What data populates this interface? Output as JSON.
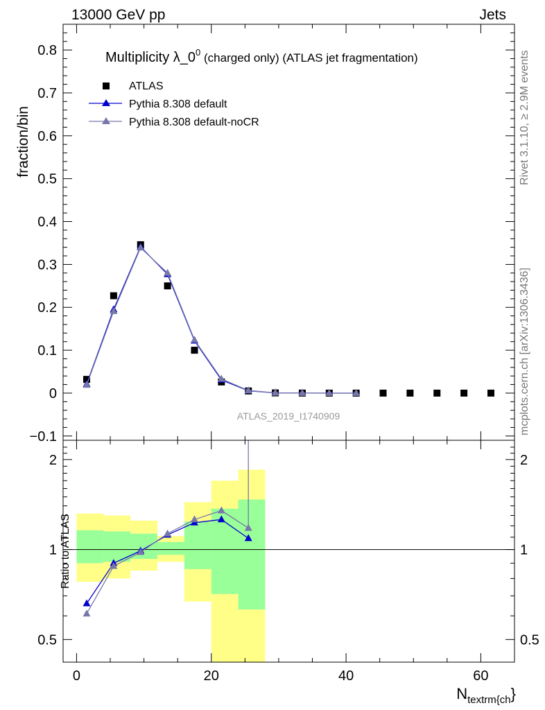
{
  "header": {
    "energy_label": "13000 GeV pp",
    "category_label": "Jets"
  },
  "side_labels": {
    "rivet": "Rivet 3.1.10, ≥ 2.9M events",
    "mcplots": "mcplots.cern.ch [arXiv:1306.3436]"
  },
  "chart_data": [
    {
      "type": "scatter",
      "panel": "main",
      "title_main": "Multiplicity λ_0",
      "title_sup": "0",
      "title_rest": " (charged only) (ATLAS jet fragmentation)",
      "ylabel": "fraction/bin",
      "xlabel_main": "N",
      "xlabel_sub": "textrm{ch",
      "xlabel_tail": "}",
      "analysis_tag": "ATLAS_2019_I1740909",
      "xlim": [
        -2,
        65
      ],
      "ylim": [
        -0.11,
        0.86
      ],
      "y_ticks": [
        "−0.1",
        "0",
        "0.1",
        "0.2",
        "0.3",
        "0.4",
        "0.5",
        "0.6",
        "0.7",
        "0.8"
      ],
      "y_tick_values": [
        -0.1,
        0,
        0.1,
        0.2,
        0.3,
        0.4,
        0.5,
        0.6,
        0.7,
        0.8
      ],
      "legend": {
        "placement": "top-left",
        "entries": [
          "ATLAS",
          "Pythia 8.308 default",
          "Pythia 8.308 default-noCR"
        ]
      },
      "series": [
        {
          "name": "ATLAS",
          "style": "square",
          "color": "#000000",
          "x": [
            1.5,
            5.5,
            9.5,
            13.5,
            17.5,
            21.5,
            25.5,
            29.5,
            33.5,
            37.5,
            41.5,
            45.5,
            49.5,
            53.5,
            57.5,
            61.5
          ],
          "y": [
            0.032,
            0.227,
            0.346,
            0.25,
            0.1,
            0.026,
            0.005,
            0.0005,
            0.0001,
            0,
            0,
            0,
            0,
            0,
            0,
            0
          ]
        },
        {
          "name": "Pythia 8.308 default",
          "style": "line-triangle",
          "color": "#0000cc",
          "x": [
            1.5,
            5.5,
            9.5,
            13.5,
            17.5,
            21.5,
            25.5,
            29.5,
            33.5,
            37.5,
            41.5
          ],
          "y": [
            0.021,
            0.195,
            0.341,
            0.277,
            0.122,
            0.031,
            0.0055,
            0.0006,
            0.0001,
            0,
            0
          ]
        },
        {
          "name": "Pythia 8.308 default-noCR",
          "style": "line-triangle",
          "color": "#7777aa",
          "x": [
            1.5,
            5.5,
            9.5,
            13.5,
            17.5,
            21.5,
            25.5,
            29.5,
            33.5,
            37.5,
            41.5
          ],
          "y": [
            0.019,
            0.191,
            0.339,
            0.28,
            0.124,
            0.033,
            0.006,
            0.0007,
            0.0001,
            0,
            0
          ]
        }
      ]
    },
    {
      "type": "line",
      "panel": "ratio",
      "ylabel": "Ratio to ATLAS",
      "xlim": [
        -2,
        65
      ],
      "ylim": [
        0.42,
        2.32
      ],
      "log_y": true,
      "x_ticks": [
        "0",
        "20",
        "40",
        "60"
      ],
      "x_tick_values": [
        0,
        20,
        40,
        60
      ],
      "y_ticks": [
        "0.5",
        "1",
        "2"
      ],
      "y_tick_values": [
        0.5,
        1,
        2
      ],
      "bands": {
        "x_edges": [
          0,
          4,
          8,
          12,
          16,
          20,
          24,
          28
        ],
        "yellow_low": [
          0.78,
          0.8,
          0.85,
          0.91,
          0.67,
          0.4,
          0.4
        ],
        "yellow_high": [
          1.32,
          1.3,
          1.25,
          1.11,
          1.44,
          1.7,
          1.85
        ],
        "green_low": [
          0.9,
          0.91,
          0.93,
          0.96,
          0.86,
          0.71,
          0.63
        ],
        "green_high": [
          1.16,
          1.15,
          1.13,
          1.06,
          1.24,
          1.37,
          1.47
        ],
        "yellow_color": "#ffff88",
        "green_color": "#99ff99"
      },
      "series": [
        {
          "name": "Pythia 8.308 default",
          "color": "#0000cc",
          "x": [
            1.5,
            5.5,
            9.5,
            13.5,
            17.5,
            21.5,
            25.5
          ],
          "y": [
            0.66,
            0.9,
            0.99,
            1.12,
            1.23,
            1.26,
            1.09
          ]
        },
        {
          "name": "Pythia 8.308 default-noCR",
          "color": "#7777aa",
          "x": [
            1.5,
            5.5,
            9.5,
            13.5,
            17.5,
            21.5,
            25.5
          ],
          "y": [
            0.61,
            0.88,
            0.98,
            1.13,
            1.26,
            1.35,
            1.18
          ]
        }
      ]
    }
  ]
}
